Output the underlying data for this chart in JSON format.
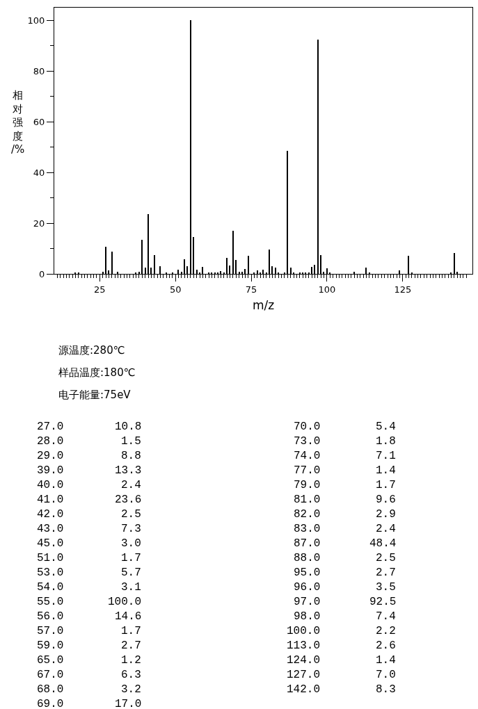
{
  "chart_data": {
    "type": "bar",
    "color": "#000000",
    "xlabel": "m/z",
    "ylabel": "相对强度/%",
    "annotations": [
      "源温度:280℃",
      "样品温度:180℃",
      "电子能量:75eV",
      "27.0",
      "10.8",
      "70.0",
      "5.4",
      "28.0",
      "1.5",
      "73.0",
      "1.8",
      "29.0",
      "8.8",
      "74.0",
      "7.1",
      "39.0",
      "13.3",
      "77.0",
      "1.4",
      "40.0",
      "2.4",
      "79.0",
      "1.7",
      "41.0",
      "23.6",
      "81.0",
      "9.6",
      "42.0",
      "2.5",
      "82.0",
      "2.9",
      "43.0",
      "7.3",
      "83.0",
      "2.4",
      "45.0",
      "3.0",
      "87.0",
      "48.4",
      "51.0",
      "1.7",
      "88.0",
      "2.5",
      "53.0",
      "5.7",
      "95.0",
      "2.7",
      "54.0",
      "3.1",
      "96.0",
      "3.5",
      "55.0",
      "100.0",
      "97.0",
      "92.5",
      "56.0",
      "14.6",
      "98.0",
      "7.4",
      "57.0",
      "1.7",
      "100.0",
      "2.2",
      "59.0",
      "2.7",
      "113.0",
      "2.6",
      "65.0",
      "1.2",
      "124.0",
      "1.4",
      "67.0",
      "6.3",
      "127.0",
      "7.0",
      "68.0",
      "3.2",
      "142.0",
      "8.3",
      "69.0",
      "17.0"
    ],
    "x": [
      17,
      18,
      26,
      27,
      28,
      29,
      31,
      37,
      38,
      39,
      40,
      41,
      42,
      43,
      45,
      47,
      49,
      51,
      52,
      53,
      54,
      55,
      56,
      57,
      58,
      59,
      61,
      62,
      63,
      64,
      65,
      66,
      67,
      68,
      69,
      70,
      71,
      72,
      73,
      74,
      76,
      77,
      78,
      79,
      80,
      81,
      82,
      83,
      84,
      86,
      87,
      88,
      89,
      91,
      92,
      93,
      94,
      95,
      96,
      97,
      98,
      99,
      100,
      101,
      109,
      113,
      114,
      124,
      127,
      128,
      141,
      142,
      143
    ],
    "values": [
      0.5,
      0.5,
      0.8,
      10.8,
      1.5,
      8.8,
      0.7,
      0.4,
      0.8,
      13.3,
      2.4,
      23.6,
      2.5,
      7.3,
      3.0,
      0.4,
      0.6,
      1.7,
      0.8,
      5.7,
      3.1,
      100.0,
      14.6,
      1.7,
      0.4,
      2.7,
      0.5,
      0.5,
      0.5,
      0.5,
      1.2,
      0.5,
      6.3,
      3.2,
      17.0,
      5.4,
      0.7,
      0.7,
      1.8,
      7.1,
      0.4,
      1.4,
      0.5,
      1.7,
      0.5,
      9.6,
      2.9,
      2.4,
      0.4,
      0.5,
      48.4,
      2.5,
      0.4,
      0.5,
      0.5,
      0.5,
      0.5,
      2.7,
      3.5,
      92.5,
      7.4,
      0.8,
      2.2,
      0.5,
      0.8,
      2.6,
      0.5,
      1.4,
      7.0,
      0.5,
      0.4,
      8.3,
      0.7
    ],
    "xlim": [
      10,
      148
    ],
    "xticks": [
      25,
      50,
      75,
      100,
      125,
      {
        "value": 11,
        "label": null
      },
      {
        "value": 12,
        "label": null
      },
      {
        "value": 13,
        "label": null
      },
      {
        "value": 14,
        "label": null
      },
      {
        "value": 15,
        "label": null
      },
      {
        "value": 16,
        "label": null
      },
      {
        "value": 17,
        "label": null
      },
      {
        "value": 18,
        "label": null
      },
      {
        "value": 19,
        "label": null
      },
      {
        "value": 20,
        "label": null
      },
      {
        "value": 21,
        "label": null
      },
      {
        "value": 22,
        "label": null
      },
      {
        "value": 23,
        "label": null
      },
      {
        "value": 24,
        "label": null
      },
      {
        "value": 26,
        "label": null
      },
      {
        "value": 27,
        "label": null
      },
      {
        "value": 28,
        "label": null
      },
      {
        "value": 29,
        "label": null
      },
      {
        "value": 30,
        "label": null
      },
      {
        "value": 31,
        "label": null
      },
      {
        "value": 32,
        "label": null
      },
      {
        "value": 33,
        "label": null
      },
      {
        "value": 34,
        "label": null
      },
      {
        "value": 35,
        "label": null
      },
      {
        "value": 36,
        "label": null
      },
      {
        "value": 37,
        "label": null
      },
      {
        "value": 38,
        "label": null
      },
      {
        "value": 39,
        "label": null
      },
      {
        "value": 40,
        "label": null
      },
      {
        "value": 41,
        "label": null
      },
      {
        "value": 42,
        "label": null
      },
      {
        "value": 43,
        "label": null
      },
      {
        "value": 44,
        "label": null
      },
      {
        "value": 45,
        "label": null
      },
      {
        "value": 46,
        "label": null
      },
      {
        "value": 47,
        "label": null
      },
      {
        "value": 48,
        "label": null
      },
      {
        "value": 49,
        "label": null
      },
      {
        "value": 51,
        "label": null
      },
      {
        "value": 52,
        "label": null
      },
      {
        "value": 53,
        "label": null
      },
      {
        "value": 54,
        "label": null
      },
      {
        "value": 55,
        "label": null
      },
      {
        "value": 56,
        "label": null
      },
      {
        "value": 57,
        "label": null
      },
      {
        "value": 58,
        "label": null
      },
      {
        "value": 59,
        "label": null
      },
      {
        "value": 60,
        "label": null
      },
      {
        "value": 61,
        "label": null
      },
      {
        "value": 62,
        "label": null
      },
      {
        "value": 63,
        "label": null
      },
      {
        "value": 64,
        "label": null
      },
      {
        "value": 65,
        "label": null
      },
      {
        "value": 66,
        "label": null
      },
      {
        "value": 67,
        "label": null
      },
      {
        "value": 68,
        "label": null
      },
      {
        "value": 69,
        "label": null
      },
      {
        "value": 70,
        "label": null
      },
      {
        "value": 71,
        "label": null
      },
      {
        "value": 72,
        "label": null
      },
      {
        "value": 73,
        "label": null
      },
      {
        "value": 74,
        "label": null
      },
      {
        "value": 76,
        "label": null
      },
      {
        "value": 77,
        "label": null
      },
      {
        "value": 78,
        "label": null
      },
      {
        "value": 79,
        "label": null
      },
      {
        "value": 80,
        "label": null
      },
      {
        "value": 81,
        "label": null
      },
      {
        "value": 82,
        "label": null
      },
      {
        "value": 83,
        "label": null
      },
      {
        "value": 84,
        "label": null
      },
      {
        "value": 85,
        "label": null
      },
      {
        "value": 86,
        "label": null
      },
      {
        "value": 87,
        "label": null
      },
      {
        "value": 88,
        "label": null
      },
      {
        "value": 89,
        "label": null
      },
      {
        "value": 90,
        "label": null
      },
      {
        "value": 91,
        "label": null
      },
      {
        "value": 92,
        "label": null
      },
      {
        "value": 93,
        "label": null
      },
      {
        "value": 94,
        "label": null
      },
      {
        "value": 95,
        "label": null
      },
      {
        "value": 96,
        "label": null
      },
      {
        "value": 97,
        "label": null
      },
      {
        "value": 98,
        "label": null
      },
      {
        "value": 99,
        "label": null
      },
      {
        "value": 101,
        "label": null
      },
      {
        "value": 102,
        "label": null
      },
      {
        "value": 103,
        "label": null
      },
      {
        "value": 104,
        "label": null
      },
      {
        "value": 105,
        "label": null
      },
      {
        "value": 106,
        "label": null
      },
      {
        "value": 107,
        "label": null
      },
      {
        "value": 108,
        "label": null
      },
      {
        "value": 109,
        "label": null
      },
      {
        "value": 110,
        "label": null
      },
      {
        "value": 111,
        "label": null
      },
      {
        "value": 112,
        "label": null
      },
      {
        "value": 113,
        "label": null
      },
      {
        "value": 114,
        "label": null
      },
      {
        "value": 115,
        "label": null
      },
      {
        "value": 116,
        "label": null
      },
      {
        "value": 117,
        "label": null
      },
      {
        "value": 118,
        "label": null
      },
      {
        "value": 119,
        "label": null
      },
      {
        "value": 120,
        "label": null
      },
      {
        "value": 121,
        "label": null
      },
      {
        "value": 122,
        "label": null
      },
      {
        "value": 123,
        "label": null
      },
      {
        "value": 124,
        "label": null
      },
      {
        "value": 126,
        "label": null
      },
      {
        "value": 127,
        "label": null
      },
      {
        "value": 128,
        "label": null
      },
      {
        "value": 129,
        "label": null
      },
      {
        "value": 130,
        "label": null
      },
      {
        "value": 131,
        "label": null
      },
      {
        "value": 132,
        "label": null
      },
      {
        "value": 133,
        "label": null
      },
      {
        "value": 134,
        "label": null
      },
      {
        "value": 135,
        "label": null
      },
      {
        "value": 136,
        "label": null
      },
      {
        "value": 137,
        "label": null
      },
      {
        "value": 138,
        "label": null
      },
      {
        "value": 139,
        "label": null
      },
      {
        "value": 140,
        "label": null
      },
      {
        "value": 141,
        "label": null
      },
      {
        "value": 142,
        "label": null
      },
      {
        "value": 143,
        "label": null
      },
      {
        "value": 144,
        "label": null
      },
      {
        "value": 145,
        "label": null
      },
      {
        "value": 146,
        "label": null
      }
    ],
    "ylim": [
      0,
      105
    ],
    "yticks": [
      0,
      20,
      40,
      60,
      80,
      100,
      {
        "value": 10,
        "label": null
      },
      {
        "value": 30,
        "label": null
      },
      {
        "value": 50,
        "label": null
      },
      {
        "value": 70,
        "label": null
      },
      {
        "value": 90,
        "label": null
      }
    ]
  }
}
